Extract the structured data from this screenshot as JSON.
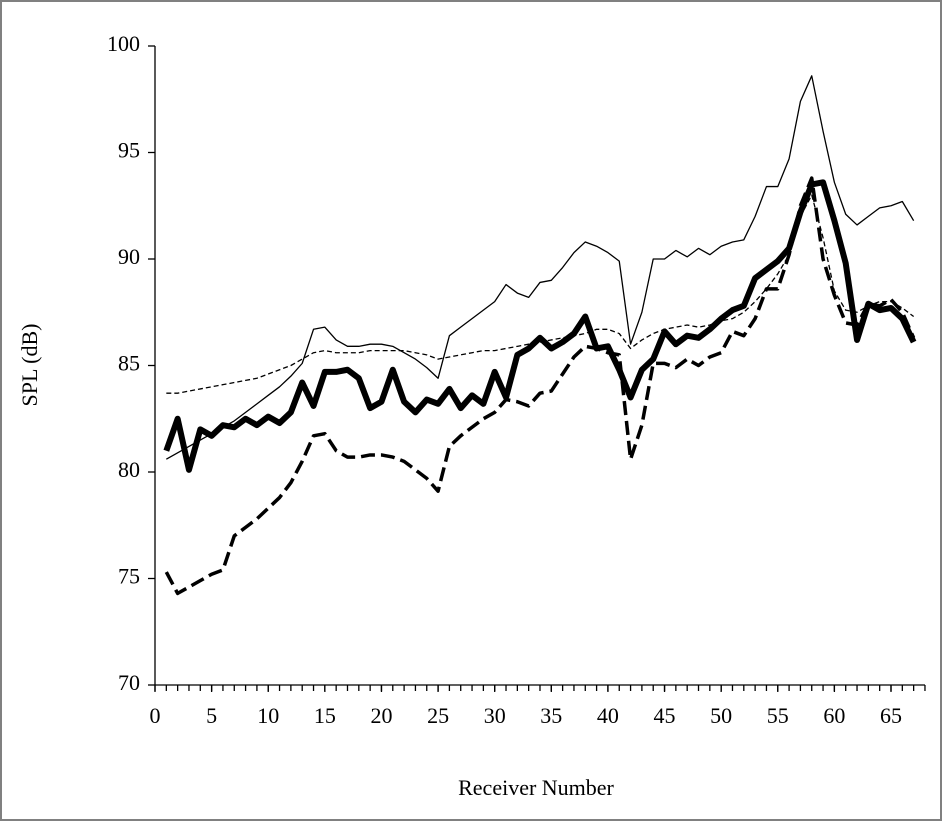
{
  "chart_data": {
    "type": "line",
    "xlabel": "Receiver Number",
    "ylabel": "SPL (dB)",
    "x": [
      1,
      2,
      3,
      4,
      5,
      6,
      7,
      8,
      9,
      10,
      11,
      12,
      13,
      14,
      15,
      16,
      17,
      18,
      19,
      20,
      21,
      22,
      23,
      24,
      25,
      26,
      27,
      28,
      29,
      30,
      31,
      32,
      33,
      34,
      35,
      36,
      37,
      38,
      39,
      40,
      41,
      42,
      43,
      44,
      45,
      46,
      47,
      48,
      49,
      50,
      51,
      52,
      53,
      54,
      55,
      56,
      57,
      58,
      59,
      60,
      61,
      62,
      63,
      64,
      65,
      66,
      67
    ],
    "xlim": [
      0,
      68
    ],
    "xticks": [
      0,
      5,
      10,
      15,
      20,
      25,
      30,
      35,
      40,
      45,
      50,
      55,
      60,
      65
    ],
    "x_minor_ticks": true,
    "ylim": [
      70,
      100
    ],
    "yticks": [
      70,
      75,
      80,
      85,
      90,
      95,
      100
    ],
    "series": [
      {
        "color": "#000000",
        "width": 1.3,
        "dash": "none",
        "values": [
          80.6,
          80.9,
          81.2,
          81.5,
          81.8,
          82.1,
          82.4,
          82.8,
          83.2,
          83.6,
          84,
          84.5,
          85.1,
          86.7,
          86.8,
          86.2,
          85.9,
          85.9,
          86,
          86,
          85.9,
          85.6,
          85.3,
          84.9,
          84.4,
          86.4,
          86.8,
          87.2,
          87.6,
          88,
          88.8,
          88.4,
          88.2,
          88.9,
          89,
          89.6,
          90.3,
          90.8,
          90.6,
          90.3,
          89.9,
          86,
          87.5,
          90,
          90,
          90.4,
          90.1,
          90.5,
          90.2,
          90.6,
          90.8,
          90.9,
          92,
          93.4,
          93.4,
          94.7,
          97.4,
          98.6,
          96,
          93.6,
          92.1,
          91.6,
          92,
          92.4,
          92.5,
          92.7,
          91.8
        ]
      },
      {
        "color": "#000000",
        "width": 1.3,
        "dash": "5 3",
        "values": [
          83.7,
          83.7,
          83.8,
          83.9,
          84,
          84.1,
          84.2,
          84.3,
          84.4,
          84.6,
          84.8,
          85,
          85.3,
          85.6,
          85.7,
          85.6,
          85.6,
          85.6,
          85.7,
          85.7,
          85.7,
          85.7,
          85.6,
          85.5,
          85.3,
          85.4,
          85.5,
          85.6,
          85.7,
          85.7,
          85.8,
          85.9,
          86,
          86.1,
          86.2,
          86.3,
          86.4,
          86.5,
          86.7,
          86.7,
          86.5,
          85.8,
          86.2,
          86.5,
          86.7,
          86.8,
          86.9,
          86.8,
          86.9,
          87.1,
          87.2,
          87.5,
          88,
          88.6,
          89.3,
          90.2,
          92,
          93,
          91,
          88.5,
          87.6,
          87.5,
          87.8,
          88,
          88,
          87.7,
          87.3
        ]
      },
      {
        "color": "#000000",
        "width": 6,
        "dash": "none",
        "values": [
          81,
          82.5,
          80.1,
          82,
          81.7,
          82.2,
          82.1,
          82.5,
          82.2,
          82.6,
          82.3,
          82.8,
          84.2,
          83.1,
          84.7,
          84.7,
          84.8,
          84.4,
          83,
          83.3,
          84.8,
          83.3,
          82.8,
          83.4,
          83.2,
          83.9,
          83,
          83.6,
          83.2,
          84.7,
          83.5,
          85.5,
          85.8,
          86.3,
          85.8,
          86.1,
          86.5,
          87.3,
          85.8,
          85.9,
          84.8,
          83.5,
          84.8,
          85.3,
          86.6,
          86,
          86.4,
          86.3,
          86.7,
          87.2,
          87.6,
          87.8,
          89.1,
          89.5,
          89.9,
          90.5,
          92.2,
          93.5,
          93.6,
          91.8,
          89.8,
          86.2,
          87.9,
          87.6,
          87.7,
          87.2,
          86.1
        ]
      },
      {
        "color": "#000000",
        "width": 3.5,
        "dash": "14 6",
        "values": [
          75.3,
          74.3,
          74.6,
          74.9,
          75.2,
          75.4,
          77,
          77.4,
          77.8,
          78.3,
          78.8,
          79.5,
          80.5,
          81.7,
          81.8,
          81,
          80.7,
          80.7,
          80.8,
          80.8,
          80.7,
          80.5,
          80.1,
          79.7,
          79.1,
          81.2,
          81.7,
          82.1,
          82.5,
          82.8,
          83.4,
          83.3,
          83.1,
          83.7,
          83.8,
          84.6,
          85.4,
          85.9,
          85.8,
          85.6,
          85.5,
          80.6,
          82.2,
          85.1,
          85.1,
          84.9,
          85.3,
          85,
          85.4,
          85.6,
          86.6,
          86.4,
          87.2,
          88.6,
          88.6,
          90.2,
          92.5,
          93.8,
          90,
          88.3,
          87,
          86.9,
          87.9,
          87.8,
          88.1,
          87.5,
          86.3
        ]
      }
    ]
  }
}
